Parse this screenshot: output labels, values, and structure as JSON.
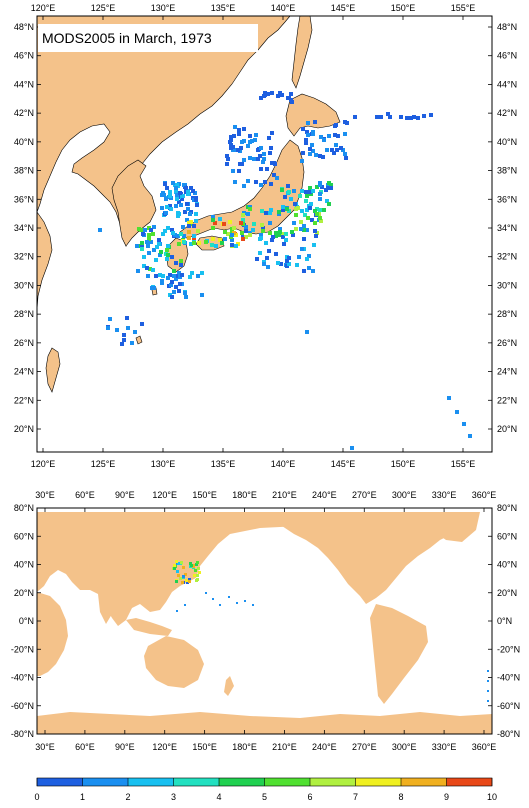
{
  "title": "MODS2005 in March, 1973",
  "colors": {
    "land": "#f4c28a",
    "ocean": "#ffffff",
    "frame": "#000000"
  },
  "regional_map": {
    "top_labels": [
      "120°E",
      "125°E",
      "130°E",
      "135°E",
      "140°E",
      "145°E",
      "150°E",
      "155°E"
    ],
    "bottom_labels": [
      "120°E",
      "125°E",
      "130°E",
      "135°E",
      "140°E",
      "145°E",
      "150°E",
      "155°E"
    ],
    "left_labels": [
      "48°N",
      "46°N",
      "44°N",
      "42°N",
      "40°N",
      "38°N",
      "36°N",
      "34°N",
      "32°N",
      "30°N",
      "28°N",
      "26°N",
      "24°N",
      "22°N",
      "20°N"
    ],
    "right_labels": [
      "48°N",
      "46°N",
      "44°N",
      "42°N",
      "40°N",
      "38°N",
      "36°N",
      "34°N",
      "32°N",
      "30°N",
      "28°N",
      "26°N",
      "24°N",
      "22°N",
      "20°N"
    ]
  },
  "global_map": {
    "top_labels": [
      "30°E",
      "60°E",
      "90°E",
      "120°E",
      "150°E",
      "180°E",
      "210°E",
      "240°E",
      "270°E",
      "300°E",
      "330°E",
      "360°E"
    ],
    "bottom_labels": [
      "30°E",
      "60°E",
      "90°E",
      "120°E",
      "150°E",
      "180°E",
      "210°E",
      "240°E",
      "270°E",
      "300°E",
      "330°E",
      "360°E"
    ],
    "left_labels": [
      "80°N",
      "60°N",
      "40°N",
      "20°N",
      "0°N",
      "-20°N",
      "-40°N",
      "-60°N",
      "-80°N"
    ],
    "right_labels": [
      "80°N",
      "60°N",
      "40°N",
      "20°N",
      "0°N",
      "-20°N",
      "-40°N",
      "-60°N",
      "-80°N"
    ]
  },
  "colorbar": {
    "colors": [
      "#1e5fe0",
      "#1a8ff0",
      "#18c0f0",
      "#22e0c0",
      "#20d050",
      "#50e030",
      "#b0f040",
      "#f0f020",
      "#f0b020",
      "#e84818"
    ],
    "labels": [
      "0",
      "1",
      "2",
      "3",
      "4",
      "5",
      "6",
      "7",
      "8",
      "9",
      "10"
    ]
  }
}
